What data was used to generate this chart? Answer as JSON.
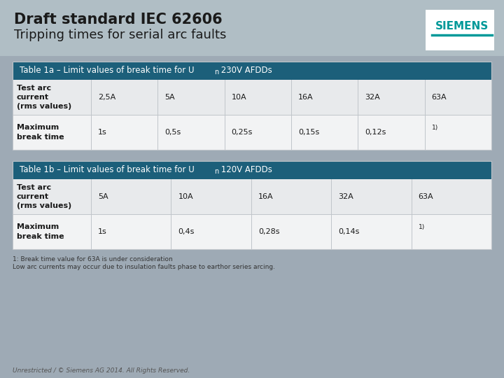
{
  "background_color": "#9eaab5",
  "title_line1": "Draft standard IEC 62606",
  "title_line2": "Tripping times for serial arc faults",
  "title_color": "#1a1a1a",
  "siemens_color": "#009999",
  "table1_header_bg": "#1c5f7a",
  "table1_header_color": "#ffffff",
  "table1_values_row1": [
    "2,5A",
    "5A",
    "10A",
    "16A",
    "32A",
    "63A"
  ],
  "table1_values_row2": [
    "1s",
    "0,5s",
    "0,25s",
    "0,15s",
    "0,12s",
    "1)"
  ],
  "table2_header_bg": "#1c5f7a",
  "table2_header_color": "#ffffff",
  "table2_values_row1": [
    "5A",
    "10A",
    "16A",
    "32A",
    "63A"
  ],
  "table2_values_row2": [
    "1s",
    "0,4s",
    "0,28s",
    "0,14s",
    "1)"
  ],
  "footnote1": "1: Break time value for 63A is under consideration",
  "footnote2": "Low arc currents may occur due to insulation faults phase to earthor series arcing.",
  "footer": "Unrestricted / © Siemens AG 2014. All Rights Reserved.",
  "row_odd_bg": "#e8eaec",
  "row_even_bg": "#f2f3f4",
  "cell_border_color": "#c0c5ca",
  "header_dark_bg": "#1c5f7a"
}
